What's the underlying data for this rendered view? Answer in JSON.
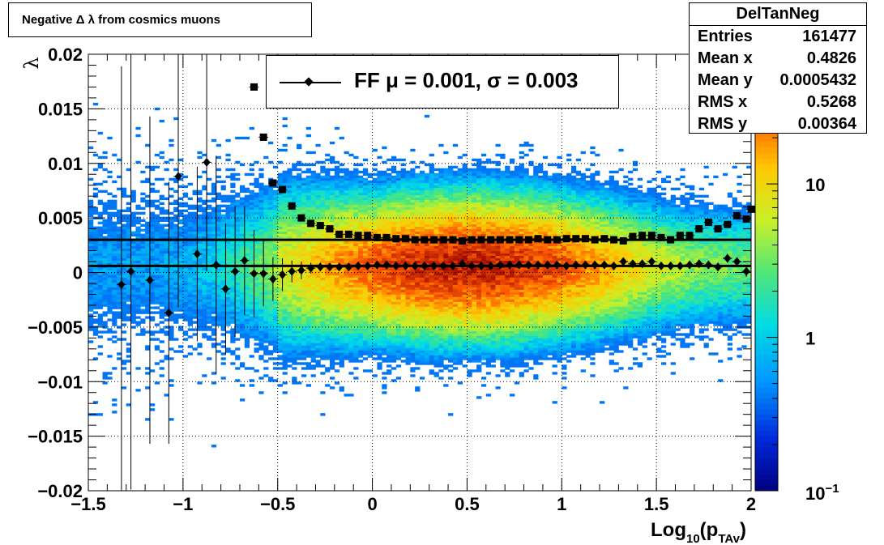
{
  "chart_data": {
    "type": "heatmap",
    "title": "Negative Δ λ from cosmics muons",
    "xlabel": "Log",
    "xlabel_sub": "10",
    "xlabel_paren_open": "(p",
    "xlabel_sub2": "TAv",
    "xlabel_paren_close": ")",
    "ylabel": "λ",
    "xlim": [
      -1.5,
      2.0
    ],
    "ylim": [
      -0.02,
      0.02
    ],
    "x_ticks": [
      "−1.5",
      "−1",
      "−0.5",
      "0",
      "0.5",
      "1",
      "1.5",
      "2"
    ],
    "x_tick_values": [
      -1.5,
      -1.0,
      -0.5,
      0.0,
      0.5,
      1.0,
      1.5,
      2.0
    ],
    "y_ticks": [
      "−0.02",
      "−0.015",
      "−0.01",
      "−0.005",
      "0",
      "0.005",
      "0.01",
      "0.015",
      "0.02"
    ],
    "y_tick_values": [
      -0.02,
      -0.015,
      -0.01,
      -0.005,
      0.0,
      0.005,
      0.01,
      0.015,
      0.02
    ],
    "grid": true,
    "color_scale": {
      "type": "log",
      "range": [
        0.1,
        70
      ],
      "labels": [
        "10",
        "1",
        "10"
      ],
      "label_values": [
        10,
        1,
        0.1
      ],
      "label_exponent": "−1",
      "palette": "rainbow"
    },
    "stats": {
      "header": "DelTanNeg",
      "rows": [
        {
          "label": "Entries",
          "value": "161477"
        },
        {
          "label": "Mean x",
          "value": "0.4826"
        },
        {
          "label": "Mean y",
          "value": "0.0005432"
        },
        {
          "label": "RMS x",
          "value": "0.5268"
        },
        {
          "label": "RMS y",
          "value": "0.00364"
        }
      ]
    },
    "legend": {
      "position": "top-center",
      "entry": "FF μ =  0.001, σ =   0.003"
    },
    "fit_lines": [
      {
        "y": 0.003
      },
      {
        "y": 0.0006
      }
    ],
    "series": [
      {
        "marker": "diamond",
        "points": [
          [
            -1.325,
            -0.0011,
            0.02
          ],
          [
            -1.275,
            0.0001,
            0.02
          ],
          [
            -1.175,
            -0.0007,
            0.015
          ],
          [
            -1.075,
            -0.0037,
            0.012
          ],
          [
            -1.025,
            0.0088,
            0.012
          ],
          [
            -0.925,
            0.0017,
            0.008
          ],
          [
            -0.875,
            0.0101,
            0.01
          ],
          [
            -0.825,
            0.0007,
            0.01
          ],
          [
            -0.775,
            -0.0015,
            0.006
          ],
          [
            -0.725,
            0.0001,
            0.006
          ],
          [
            -0.675,
            0.0011,
            0.005
          ],
          [
            -0.625,
            -0.0001,
            0.004
          ],
          [
            -0.575,
            -0.0001,
            0.003
          ],
          [
            -0.525,
            -0.0006,
            0.002
          ],
          [
            -0.475,
            -0.0002,
            0.0015
          ],
          [
            -0.425,
            0.0001,
            0.001
          ],
          [
            -0.375,
            0.0002,
            0.0008
          ],
          [
            -0.325,
            0.0004,
            0.0005
          ],
          [
            -0.275,
            0.0005,
            0.0004
          ],
          [
            -0.225,
            0.0005,
            0.0003
          ],
          [
            -0.175,
            0.0005,
            0.0003
          ],
          [
            -0.125,
            0.0005,
            0.0002
          ],
          [
            -0.075,
            0.0006,
            0.0002
          ],
          [
            -0.025,
            0.0006,
            0.0002
          ],
          [
            0.025,
            0.0007,
            0.0002
          ],
          [
            0.075,
            0.0007,
            0.0002
          ],
          [
            0.125,
            0.0006,
            0.0002
          ],
          [
            0.175,
            0.0006,
            0.0002
          ],
          [
            0.225,
            0.0006,
            0.0002
          ],
          [
            0.275,
            0.0006,
            0.0002
          ],
          [
            0.325,
            0.0006,
            0.0002
          ],
          [
            0.375,
            0.0006,
            0.0002
          ],
          [
            0.425,
            0.0006,
            0.0002
          ],
          [
            0.475,
            0.0008,
            0.0002
          ],
          [
            0.525,
            0.0006,
            0.0002
          ],
          [
            0.575,
            0.0006,
            0.0002
          ],
          [
            0.625,
            0.0006,
            0.0002
          ],
          [
            0.675,
            0.0007,
            0.0002
          ],
          [
            0.725,
            0.0007,
            0.0002
          ],
          [
            0.775,
            0.0007,
            0.0002
          ],
          [
            0.825,
            0.0007,
            0.0002
          ],
          [
            0.875,
            0.0007,
            0.0002
          ],
          [
            0.925,
            0.0007,
            0.0002
          ],
          [
            0.975,
            0.0007,
            0.0002
          ],
          [
            1.025,
            0.0006,
            0.0002
          ],
          [
            1.075,
            0.0007,
            0.0002
          ],
          [
            1.125,
            0.0007,
            0.0002
          ],
          [
            1.175,
            0.0007,
            0.0002
          ],
          [
            1.225,
            0.0007,
            0.0002
          ],
          [
            1.275,
            0.0006,
            0.0002
          ],
          [
            1.325,
            0.001,
            0.0003
          ],
          [
            1.375,
            0.0008,
            0.0003
          ],
          [
            1.425,
            0.0008,
            0.0003
          ],
          [
            1.475,
            0.001,
            0.0003
          ],
          [
            1.525,
            0.0006,
            0.0003
          ],
          [
            1.575,
            0.0006,
            0.0003
          ],
          [
            1.625,
            0.0006,
            0.0003
          ],
          [
            1.675,
            0.0007,
            0.0003
          ],
          [
            1.725,
            0.0008,
            0.0003
          ],
          [
            1.775,
            0.0007,
            0.0003
          ],
          [
            1.825,
            0.0005,
            0.0004
          ],
          [
            1.875,
            0.0013,
            0.0004
          ],
          [
            1.925,
            0.001,
            0.0004
          ],
          [
            1.975,
            0.0001,
            0.0005
          ]
        ]
      },
      {
        "marker": "square",
        "points": [
          [
            -0.625,
            0.017,
            0.0
          ],
          [
            -0.575,
            0.0124,
            0.0
          ],
          [
            -0.525,
            0.0082,
            0.0
          ],
          [
            -0.475,
            0.0076,
            0.0
          ],
          [
            -0.425,
            0.0061,
            0.0
          ],
          [
            -0.375,
            0.005,
            0.0
          ],
          [
            -0.325,
            0.0045,
            0.0
          ],
          [
            -0.275,
            0.0043,
            0.0
          ],
          [
            -0.225,
            0.004,
            0.0
          ],
          [
            -0.175,
            0.0035,
            0.0
          ],
          [
            -0.125,
            0.0035,
            0.0
          ],
          [
            -0.075,
            0.0034,
            0.0
          ],
          [
            -0.025,
            0.0034,
            0.0
          ],
          [
            0.025,
            0.0032,
            0.0
          ],
          [
            0.075,
            0.0032,
            0.0
          ],
          [
            0.125,
            0.0031,
            0.0
          ],
          [
            0.175,
            0.0031,
            0.0
          ],
          [
            0.225,
            0.003,
            0.0
          ],
          [
            0.275,
            0.003,
            0.0
          ],
          [
            0.325,
            0.003,
            0.0
          ],
          [
            0.375,
            0.003,
            0.0
          ],
          [
            0.425,
            0.003,
            0.0
          ],
          [
            0.475,
            0.0029,
            0.0
          ],
          [
            0.525,
            0.003,
            0.0
          ],
          [
            0.575,
            0.003,
            0.0
          ],
          [
            0.625,
            0.003,
            0.0
          ],
          [
            0.675,
            0.003,
            0.0
          ],
          [
            0.725,
            0.003,
            0.0
          ],
          [
            0.775,
            0.003,
            0.0
          ],
          [
            0.825,
            0.003,
            0.0
          ],
          [
            0.875,
            0.0031,
            0.0
          ],
          [
            0.925,
            0.003,
            0.0
          ],
          [
            0.975,
            0.003,
            0.0
          ],
          [
            1.025,
            0.0031,
            0.0
          ],
          [
            1.075,
            0.0031,
            0.0
          ],
          [
            1.125,
            0.0031,
            0.0
          ],
          [
            1.175,
            0.003,
            0.0
          ],
          [
            1.225,
            0.0031,
            0.0
          ],
          [
            1.275,
            0.003,
            0.0
          ],
          [
            1.325,
            0.0029,
            0.0
          ],
          [
            1.375,
            0.0033,
            0.0
          ],
          [
            1.425,
            0.0034,
            0.0
          ],
          [
            1.475,
            0.0034,
            0.0
          ],
          [
            1.525,
            0.0032,
            0.0
          ],
          [
            1.575,
            0.003,
            0.0
          ],
          [
            1.625,
            0.0034,
            0.0
          ],
          [
            1.675,
            0.0034,
            0.0
          ],
          [
            1.725,
            0.004,
            0.0
          ],
          [
            1.775,
            0.0046,
            0.0
          ],
          [
            1.825,
            0.004,
            0.0
          ],
          [
            1.875,
            0.0044,
            0.0
          ],
          [
            1.925,
            0.0052,
            0.0
          ],
          [
            1.975,
            0.0049,
            0.0
          ],
          [
            2.0,
            0.0058,
            0.0
          ]
        ]
      }
    ]
  }
}
